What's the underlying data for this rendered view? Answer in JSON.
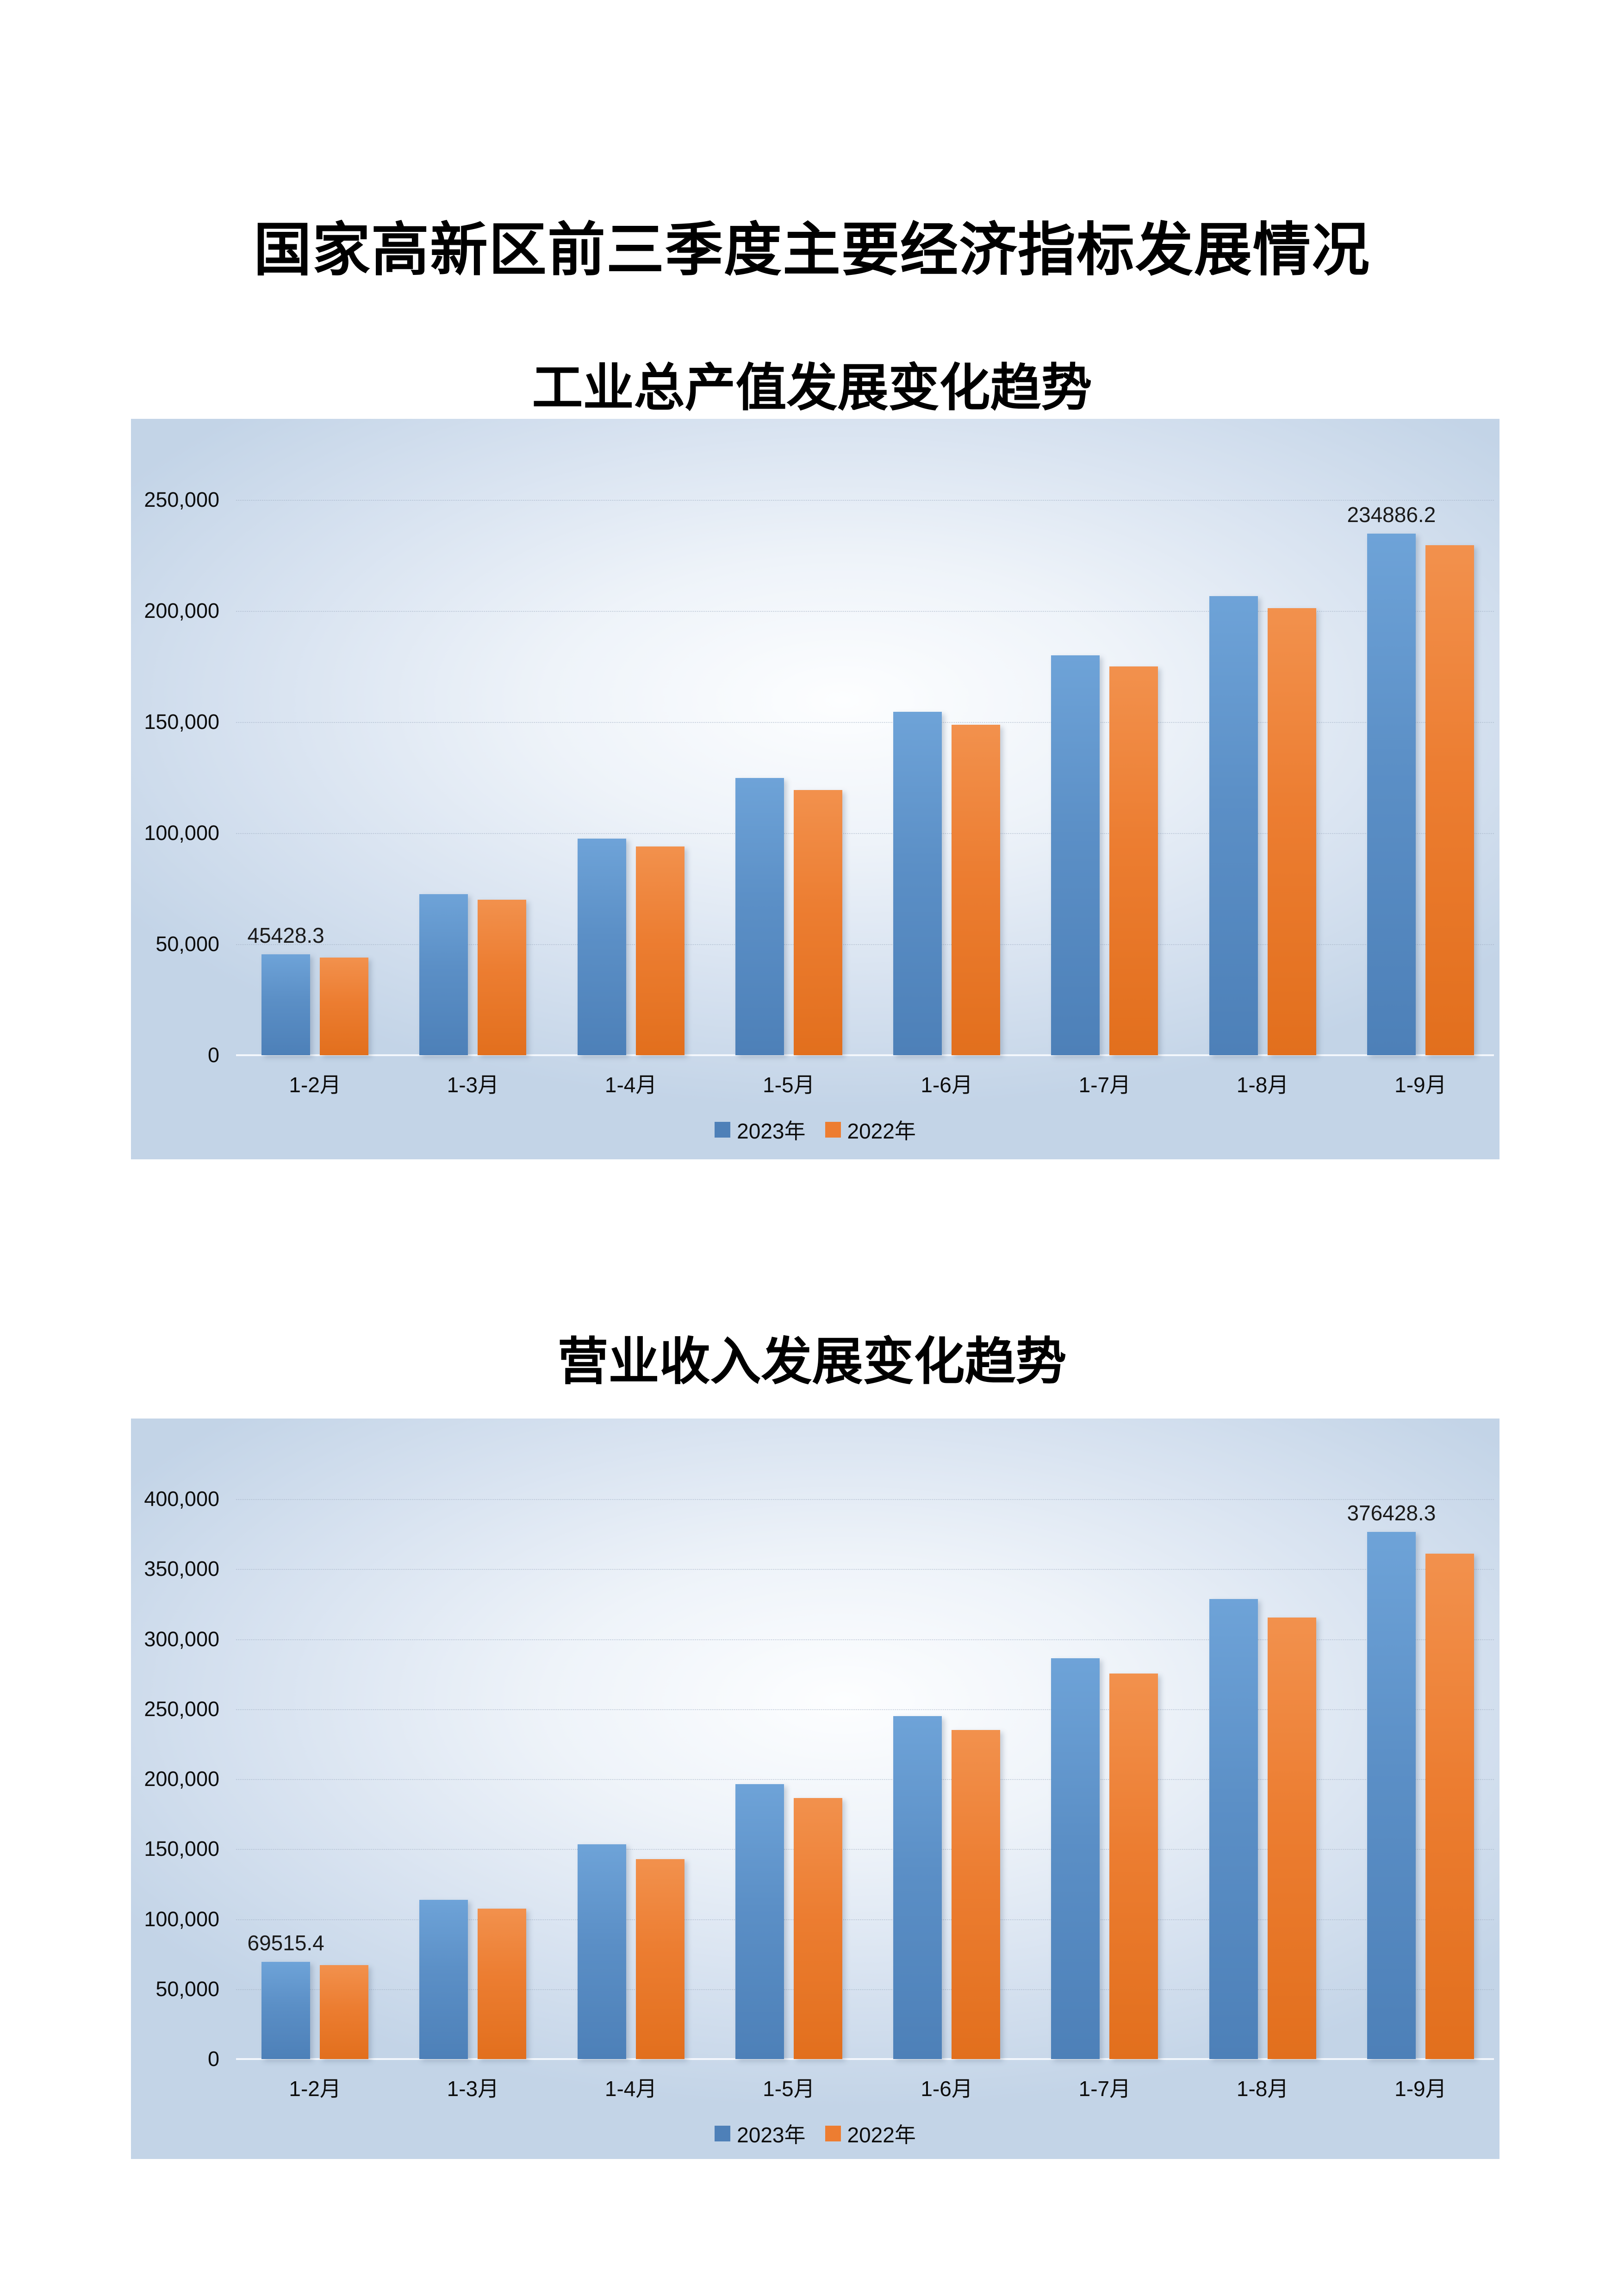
{
  "page": {
    "title": "国家高新区前三季度主要经济指标发展情况",
    "background_color": "#ffffff"
  },
  "colors": {
    "series_2023": "#4E80B8",
    "series_2022": "#ED7D31",
    "chart_background_edge": "#C3D4E7",
    "chart_background_center": "#FDFEFF",
    "gridline": "#A0AFC3",
    "text": "#0D0D0D"
  },
  "chart_data": [
    {
      "type": "bar",
      "title": "工业总产值发展变化趋势",
      "categories": [
        "1-2月",
        "1-3月",
        "1-4月",
        "1-5月",
        "1-6月",
        "1-7月",
        "1-8月",
        "1-9月"
      ],
      "series": [
        {
          "name": "2023年",
          "values": [
            45428.3,
            72600,
            97400,
            124700,
            154500,
            180100,
            206600,
            234886.2
          ]
        },
        {
          "name": "2022年",
          "values": [
            44000,
            70000,
            93900,
            119300,
            148800,
            174900,
            201200,
            229600
          ]
        }
      ],
      "ylim": [
        0,
        250000
      ],
      "ytick_step": 50000,
      "ytick_labels": [
        "0",
        "50,000",
        "100,000",
        "150,000",
        "200,000",
        "250,000"
      ],
      "grid": true,
      "legend_position": "bottom",
      "data_labels": [
        {
          "series": "2023年",
          "category_index": 0,
          "text": "45428.3"
        },
        {
          "series": "2023年",
          "category_index": 7,
          "text": "234886.2"
        }
      ]
    },
    {
      "type": "bar",
      "title": "营业收入发展变化趋势",
      "categories": [
        "1-2月",
        "1-3月",
        "1-4月",
        "1-5月",
        "1-6月",
        "1-7月",
        "1-8月",
        "1-9月"
      ],
      "series": [
        {
          "name": "2023年",
          "values": [
            69515.4,
            113800,
            153400,
            196500,
            244800,
            286400,
            328600,
            376428.3
          ]
        },
        {
          "name": "2022年",
          "values": [
            67100,
            107600,
            142900,
            186300,
            234900,
            275300,
            315500,
            361000
          ]
        }
      ],
      "ylim": [
        0,
        400000
      ],
      "ytick_step": 50000,
      "ytick_labels": [
        "0",
        "50,000",
        "100,000",
        "150,000",
        "200,000",
        "250,000",
        "300,000",
        "350,000",
        "400,000"
      ],
      "grid": true,
      "legend_position": "bottom",
      "data_labels": [
        {
          "series": "2023年",
          "category_index": 0,
          "text": "69515.4"
        },
        {
          "series": "2023年",
          "category_index": 7,
          "text": "376428.3"
        }
      ]
    }
  ]
}
